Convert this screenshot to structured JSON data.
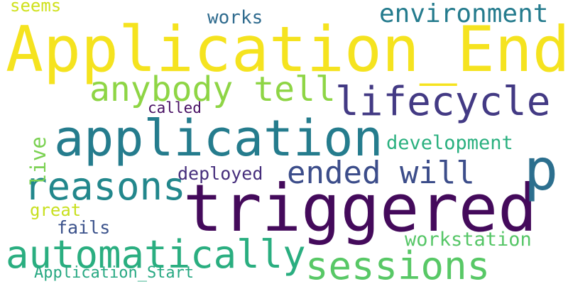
{
  "words": [
    {
      "id": "application-end",
      "text": "Application_End",
      "color": "#f5e31f"
    },
    {
      "id": "triggered",
      "text": "triggered",
      "color": "#440a5b"
    },
    {
      "id": "application",
      "text": "application",
      "color": "#257c8d"
    },
    {
      "id": "p",
      "text": "p",
      "color": "#2c6f8e"
    },
    {
      "id": "lifecycle",
      "text": "lifecycle",
      "color": "#433a84"
    },
    {
      "id": "reasons",
      "text": "reasons",
      "color": "#22878c"
    },
    {
      "id": "automatically",
      "text": "automatically",
      "color": "#2aae80"
    },
    {
      "id": "sessions",
      "text": "sessions",
      "color": "#58c866"
    },
    {
      "id": "anybody-tell",
      "text": "anybody tell",
      "color": "#8ed545"
    },
    {
      "id": "ended-will",
      "text": "ended will",
      "color": "#3c4d8a"
    },
    {
      "id": "environment",
      "text": "environment",
      "color": "#247b8d"
    },
    {
      "id": "development",
      "text": "development",
      "color": "#2ab07f"
    },
    {
      "id": "workstation",
      "text": "workstation",
      "color": "#56c667"
    },
    {
      "id": "works",
      "text": "works",
      "color": "#2f6b8e"
    },
    {
      "id": "deployed",
      "text": "deployed",
      "color": "#462e7c"
    },
    {
      "id": "fails",
      "text": "fails",
      "color": "#3b528b"
    },
    {
      "id": "great",
      "text": "great",
      "color": "#c8e020"
    },
    {
      "id": "application-start",
      "text": "Application_Start",
      "color": "#27a882"
    },
    {
      "id": "seems",
      "text": "seems",
      "color": "#cfe11c"
    },
    {
      "id": "called",
      "text": "called",
      "color": "#470f62"
    },
    {
      "id": "live",
      "text": "live",
      "color": "#7ad151"
    }
  ]
}
